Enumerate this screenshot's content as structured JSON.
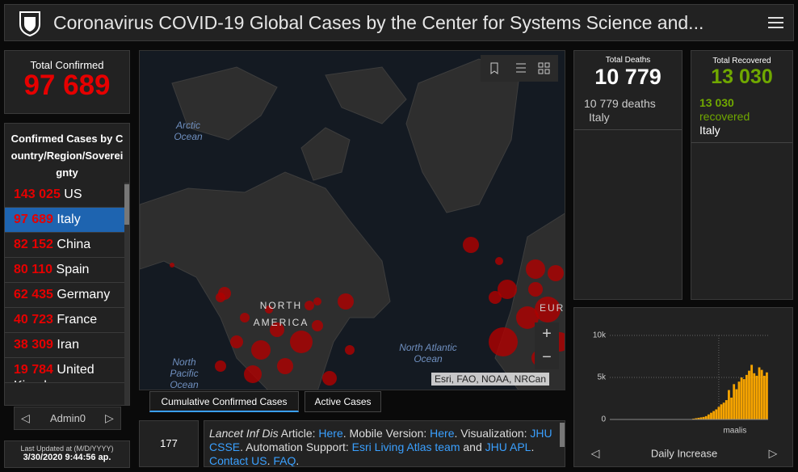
{
  "header": {
    "title": "Coronavirus COVID-19 Global Cases by the Center for Systems Science and..."
  },
  "total_confirmed": {
    "label": "Total Confirmed",
    "value": "97 689"
  },
  "country_list": {
    "title": "Confirmed Cases by Country/Region/Sovereignty",
    "selected": 1,
    "rows": [
      {
        "count": "143 025",
        "name": "US"
      },
      {
        "count": "97 689",
        "name": "Italy"
      },
      {
        "count": "82 152",
        "name": "China"
      },
      {
        "count": "80 110",
        "name": "Spain"
      },
      {
        "count": "62 435",
        "name": "Germany"
      },
      {
        "count": "40 723",
        "name": "France"
      },
      {
        "count": "38 309",
        "name": "Iran"
      },
      {
        "count": "19 784",
        "name": "United Kingdom"
      }
    ]
  },
  "nav": {
    "label": "Admin0"
  },
  "last_updated": {
    "label": "Last Updated at (M/D/YYYY)",
    "value": "3/30/2020 9:44:56 ap."
  },
  "map": {
    "labels": [
      "Arctic Ocean",
      "NORTH AMERICA",
      "North Pacific Ocean",
      "North Atlantic Ocean",
      "EUROPE"
    ],
    "attribution": "Esri, FAO, NOAA, NRCan"
  },
  "tabs": [
    {
      "label": "Cumulative Confirmed Cases",
      "active": true
    },
    {
      "label": "Active Cases",
      "active": false
    }
  ],
  "counter": 177,
  "info": {
    "segments": [
      {
        "text": "Lancet Inf Dis",
        "italic": true
      },
      {
        "text": " Article: "
      },
      {
        "text": "Here",
        "link": true
      },
      {
        "text": ". Mobile Version: "
      },
      {
        "text": "Here",
        "link": true
      },
      {
        "text": ". Visualization: "
      },
      {
        "text": "JHU CSSE",
        "link": true
      },
      {
        "text": ". Automation Support: "
      },
      {
        "text": "Esri Living Atlas team",
        "link": true
      },
      {
        "text": " and "
      },
      {
        "text": "JHU APL",
        "link": true
      },
      {
        "text": ". "
      },
      {
        "text": "Contact US",
        "link": true
      },
      {
        "text": ". "
      },
      {
        "text": "FAQ",
        "link": true
      },
      {
        "text": "."
      }
    ]
  },
  "deaths": {
    "label": "Total Deaths",
    "value": "10 779",
    "detail": "10 779 deaths",
    "place": "Italy"
  },
  "recovered": {
    "label": "Total Recovered",
    "value": "13 030",
    "count": "13 030",
    "detail": "recovered",
    "place": "Italy"
  },
  "chart_data": {
    "type": "bar",
    "title": "Daily Increase",
    "color": "#f5a300",
    "categories": [
      null,
      null,
      null,
      null,
      null,
      null,
      null,
      null,
      null,
      null,
      null,
      null,
      null,
      null,
      null,
      null,
      null,
      null,
      null,
      null,
      null,
      null,
      null,
      null,
      null,
      null,
      null,
      null,
      null,
      null,
      null,
      null,
      null,
      null,
      null,
      null,
      null,
      null,
      null,
      null,
      "maalis",
      null,
      null,
      null,
      null,
      null,
      null,
      null,
      null,
      null,
      null,
      null,
      null,
      null,
      null,
      null,
      null,
      null,
      null,
      null
    ],
    "values": [
      0,
      0,
      0,
      0,
      0,
      0,
      0,
      0,
      0,
      0,
      0,
      0,
      0,
      0,
      0,
      0,
      0,
      0,
      0,
      0,
      0,
      0,
      0,
      0,
      0,
      0,
      0,
      10,
      20,
      50,
      100,
      150,
      200,
      250,
      300,
      400,
      600,
      800,
      1000,
      1200,
      1500,
      1800,
      2000,
      2300,
      3500,
      2600,
      4200,
      3600,
      4500,
      5000,
      4800,
      5300,
      5800,
      6500,
      5500,
      5200,
      6200,
      5900,
      5200,
      5600
    ],
    "ylim": [
      0,
      10000
    ],
    "yticks": [
      {
        "value": 0,
        "label": "0"
      },
      {
        "value": 5000,
        "label": "5k"
      },
      {
        "value": 10000,
        "label": "10k"
      }
    ]
  }
}
